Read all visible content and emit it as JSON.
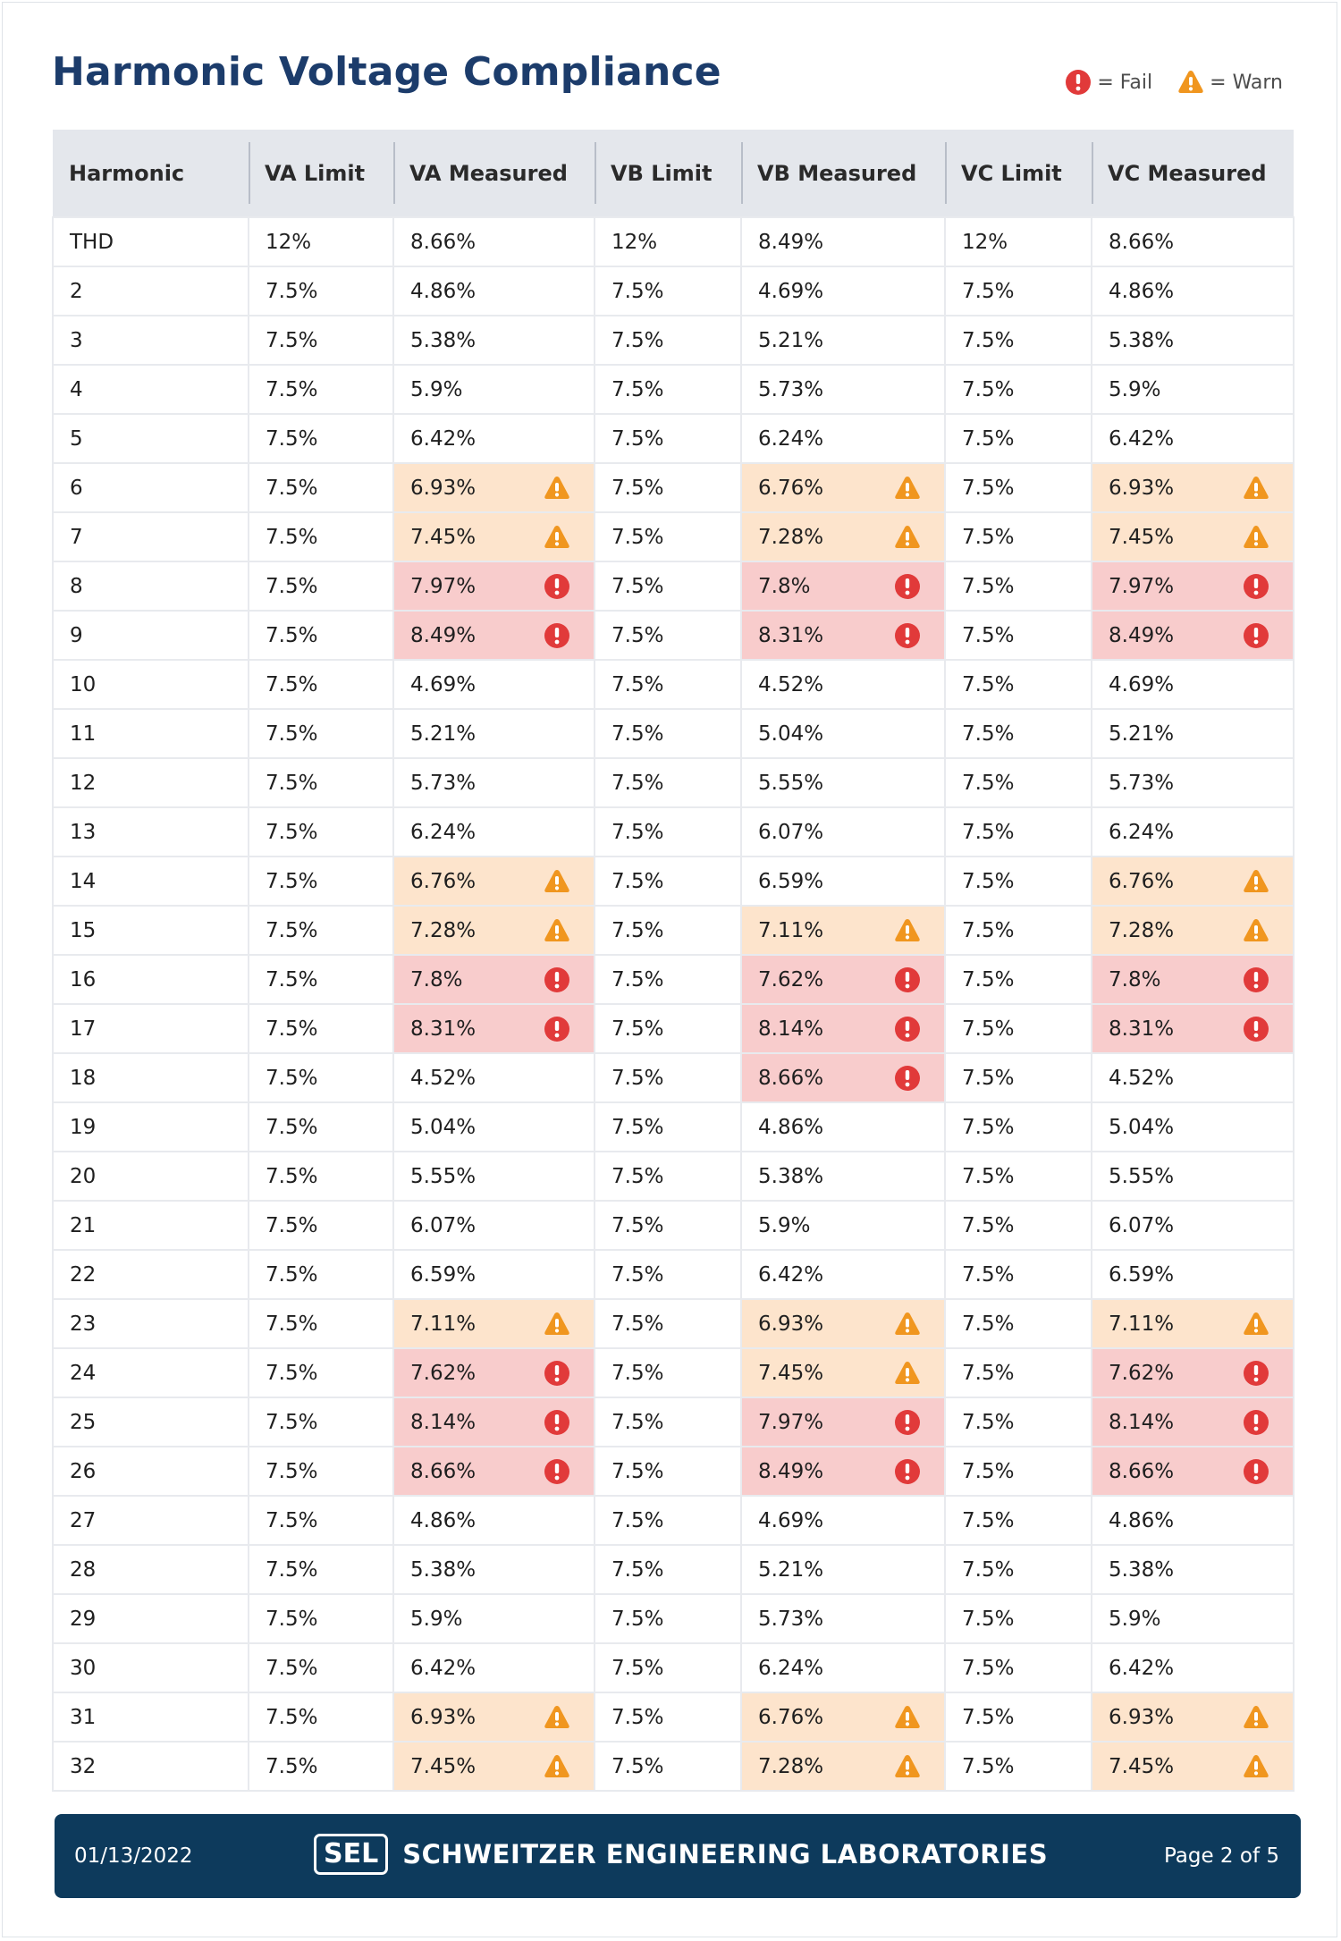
{
  "title": "Harmonic Voltage Compliance",
  "legend": {
    "fail_label": "= Fail",
    "warn_label": "= Warn",
    "fail_icon": "exclamation-circle-icon",
    "warn_icon": "warning-triangle-icon"
  },
  "colors": {
    "title": "#1c3c6b",
    "header_bg": "#e4e7ec",
    "warn_bg": "#fde4cc",
    "fail_bg": "#f8cccc",
    "warn_icon": "#f0961f",
    "fail_icon": "#e13a3a",
    "footer_bg": "#0d3a5c"
  },
  "table": {
    "headers": [
      "Harmonic",
      "VA Limit",
      "VA Measured",
      "VB Limit",
      "VB Measured",
      "VC Limit",
      "VC Measured"
    ],
    "rows": [
      {
        "h": "THD",
        "va_l": "12%",
        "va_m": "8.66%",
        "va_s": "",
        "vb_l": "12%",
        "vb_m": "8.49%",
        "vb_s": "",
        "vc_l": "12%",
        "vc_m": "8.66%",
        "vc_s": ""
      },
      {
        "h": "2",
        "va_l": "7.5%",
        "va_m": "4.86%",
        "va_s": "",
        "vb_l": "7.5%",
        "vb_m": "4.69%",
        "vb_s": "",
        "vc_l": "7.5%",
        "vc_m": "4.86%",
        "vc_s": ""
      },
      {
        "h": "3",
        "va_l": "7.5%",
        "va_m": "5.38%",
        "va_s": "",
        "vb_l": "7.5%",
        "vb_m": "5.21%",
        "vb_s": "",
        "vc_l": "7.5%",
        "vc_m": "5.38%",
        "vc_s": ""
      },
      {
        "h": "4",
        "va_l": "7.5%",
        "va_m": "5.9%",
        "va_s": "",
        "vb_l": "7.5%",
        "vb_m": "5.73%",
        "vb_s": "",
        "vc_l": "7.5%",
        "vc_m": "5.9%",
        "vc_s": ""
      },
      {
        "h": "5",
        "va_l": "7.5%",
        "va_m": "6.42%",
        "va_s": "",
        "vb_l": "7.5%",
        "vb_m": "6.24%",
        "vb_s": "",
        "vc_l": "7.5%",
        "vc_m": "6.42%",
        "vc_s": ""
      },
      {
        "h": "6",
        "va_l": "7.5%",
        "va_m": "6.93%",
        "va_s": "warn",
        "vb_l": "7.5%",
        "vb_m": "6.76%",
        "vb_s": "warn",
        "vc_l": "7.5%",
        "vc_m": "6.93%",
        "vc_s": "warn"
      },
      {
        "h": "7",
        "va_l": "7.5%",
        "va_m": "7.45%",
        "va_s": "warn",
        "vb_l": "7.5%",
        "vb_m": "7.28%",
        "vb_s": "warn",
        "vc_l": "7.5%",
        "vc_m": "7.45%",
        "vc_s": "warn"
      },
      {
        "h": "8",
        "va_l": "7.5%",
        "va_m": "7.97%",
        "va_s": "fail",
        "vb_l": "7.5%",
        "vb_m": "7.8%",
        "vb_s": "fail",
        "vc_l": "7.5%",
        "vc_m": "7.97%",
        "vc_s": "fail"
      },
      {
        "h": "9",
        "va_l": "7.5%",
        "va_m": "8.49%",
        "va_s": "fail",
        "vb_l": "7.5%",
        "vb_m": "8.31%",
        "vb_s": "fail",
        "vc_l": "7.5%",
        "vc_m": "8.49%",
        "vc_s": "fail"
      },
      {
        "h": "10",
        "va_l": "7.5%",
        "va_m": "4.69%",
        "va_s": "",
        "vb_l": "7.5%",
        "vb_m": "4.52%",
        "vb_s": "",
        "vc_l": "7.5%",
        "vc_m": "4.69%",
        "vc_s": ""
      },
      {
        "h": "11",
        "va_l": "7.5%",
        "va_m": "5.21%",
        "va_s": "",
        "vb_l": "7.5%",
        "vb_m": "5.04%",
        "vb_s": "",
        "vc_l": "7.5%",
        "vc_m": "5.21%",
        "vc_s": ""
      },
      {
        "h": "12",
        "va_l": "7.5%",
        "va_m": "5.73%",
        "va_s": "",
        "vb_l": "7.5%",
        "vb_m": "5.55%",
        "vb_s": "",
        "vc_l": "7.5%",
        "vc_m": "5.73%",
        "vc_s": ""
      },
      {
        "h": "13",
        "va_l": "7.5%",
        "va_m": "6.24%",
        "va_s": "",
        "vb_l": "7.5%",
        "vb_m": "6.07%",
        "vb_s": "",
        "vc_l": "7.5%",
        "vc_m": "6.24%",
        "vc_s": ""
      },
      {
        "h": "14",
        "va_l": "7.5%",
        "va_m": "6.76%",
        "va_s": "warn",
        "vb_l": "7.5%",
        "vb_m": "6.59%",
        "vb_s": "",
        "vc_l": "7.5%",
        "vc_m": "6.76%",
        "vc_s": "warn"
      },
      {
        "h": "15",
        "va_l": "7.5%",
        "va_m": "7.28%",
        "va_s": "warn",
        "vb_l": "7.5%",
        "vb_m": "7.11%",
        "vb_s": "warn",
        "vc_l": "7.5%",
        "vc_m": "7.28%",
        "vc_s": "warn"
      },
      {
        "h": "16",
        "va_l": "7.5%",
        "va_m": "7.8%",
        "va_s": "fail",
        "vb_l": "7.5%",
        "vb_m": "7.62%",
        "vb_s": "fail",
        "vc_l": "7.5%",
        "vc_m": "7.8%",
        "vc_s": "fail"
      },
      {
        "h": "17",
        "va_l": "7.5%",
        "va_m": "8.31%",
        "va_s": "fail",
        "vb_l": "7.5%",
        "vb_m": "8.14%",
        "vb_s": "fail",
        "vc_l": "7.5%",
        "vc_m": "8.31%",
        "vc_s": "fail"
      },
      {
        "h": "18",
        "va_l": "7.5%",
        "va_m": "4.52%",
        "va_s": "",
        "vb_l": "7.5%",
        "vb_m": "8.66%",
        "vb_s": "fail",
        "vc_l": "7.5%",
        "vc_m": "4.52%",
        "vc_s": ""
      },
      {
        "h": "19",
        "va_l": "7.5%",
        "va_m": "5.04%",
        "va_s": "",
        "vb_l": "7.5%",
        "vb_m": "4.86%",
        "vb_s": "",
        "vc_l": "7.5%",
        "vc_m": "5.04%",
        "vc_s": ""
      },
      {
        "h": "20",
        "va_l": "7.5%",
        "va_m": "5.55%",
        "va_s": "",
        "vb_l": "7.5%",
        "vb_m": "5.38%",
        "vb_s": "",
        "vc_l": "7.5%",
        "vc_m": "5.55%",
        "vc_s": ""
      },
      {
        "h": "21",
        "va_l": "7.5%",
        "va_m": "6.07%",
        "va_s": "",
        "vb_l": "7.5%",
        "vb_m": "5.9%",
        "vb_s": "",
        "vc_l": "7.5%",
        "vc_m": "6.07%",
        "vc_s": ""
      },
      {
        "h": "22",
        "va_l": "7.5%",
        "va_m": "6.59%",
        "va_s": "",
        "vb_l": "7.5%",
        "vb_m": "6.42%",
        "vb_s": "",
        "vc_l": "7.5%",
        "vc_m": "6.59%",
        "vc_s": ""
      },
      {
        "h": "23",
        "va_l": "7.5%",
        "va_m": "7.11%",
        "va_s": "warn",
        "vb_l": "7.5%",
        "vb_m": "6.93%",
        "vb_s": "warn",
        "vc_l": "7.5%",
        "vc_m": "7.11%",
        "vc_s": "warn"
      },
      {
        "h": "24",
        "va_l": "7.5%",
        "va_m": "7.62%",
        "va_s": "fail",
        "vb_l": "7.5%",
        "vb_m": "7.45%",
        "vb_s": "warn",
        "vc_l": "7.5%",
        "vc_m": "7.62%",
        "vc_s": "fail"
      },
      {
        "h": "25",
        "va_l": "7.5%",
        "va_m": "8.14%",
        "va_s": "fail",
        "vb_l": "7.5%",
        "vb_m": "7.97%",
        "vb_s": "fail",
        "vc_l": "7.5%",
        "vc_m": "8.14%",
        "vc_s": "fail"
      },
      {
        "h": "26",
        "va_l": "7.5%",
        "va_m": "8.66%",
        "va_s": "fail",
        "vb_l": "7.5%",
        "vb_m": "8.49%",
        "vb_s": "fail",
        "vc_l": "7.5%",
        "vc_m": "8.66%",
        "vc_s": "fail"
      },
      {
        "h": "27",
        "va_l": "7.5%",
        "va_m": "4.86%",
        "va_s": "",
        "vb_l": "7.5%",
        "vb_m": "4.69%",
        "vb_s": "",
        "vc_l": "7.5%",
        "vc_m": "4.86%",
        "vc_s": ""
      },
      {
        "h": "28",
        "va_l": "7.5%",
        "va_m": "5.38%",
        "va_s": "",
        "vb_l": "7.5%",
        "vb_m": "5.21%",
        "vb_s": "",
        "vc_l": "7.5%",
        "vc_m": "5.38%",
        "vc_s": ""
      },
      {
        "h": "29",
        "va_l": "7.5%",
        "va_m": "5.9%",
        "va_s": "",
        "vb_l": "7.5%",
        "vb_m": "5.73%",
        "vb_s": "",
        "vc_l": "7.5%",
        "vc_m": "5.9%",
        "vc_s": ""
      },
      {
        "h": "30",
        "va_l": "7.5%",
        "va_m": "6.42%",
        "va_s": "",
        "vb_l": "7.5%",
        "vb_m": "6.24%",
        "vb_s": "",
        "vc_l": "7.5%",
        "vc_m": "6.42%",
        "vc_s": ""
      },
      {
        "h": "31",
        "va_l": "7.5%",
        "va_m": "6.93%",
        "va_s": "warn",
        "vb_l": "7.5%",
        "vb_m": "6.76%",
        "vb_s": "warn",
        "vc_l": "7.5%",
        "vc_m": "6.93%",
        "vc_s": "warn"
      },
      {
        "h": "32",
        "va_l": "7.5%",
        "va_m": "7.45%",
        "va_s": "warn",
        "vb_l": "7.5%",
        "vb_m": "7.28%",
        "vb_s": "warn",
        "vc_l": "7.5%",
        "vc_m": "7.45%",
        "vc_s": "warn"
      }
    ]
  },
  "footer": {
    "date": "01/13/2022",
    "logo": "SEL",
    "company": "SCHWEITZER ENGINEERING LABORATORIES",
    "page": "Page 2 of 5"
  }
}
